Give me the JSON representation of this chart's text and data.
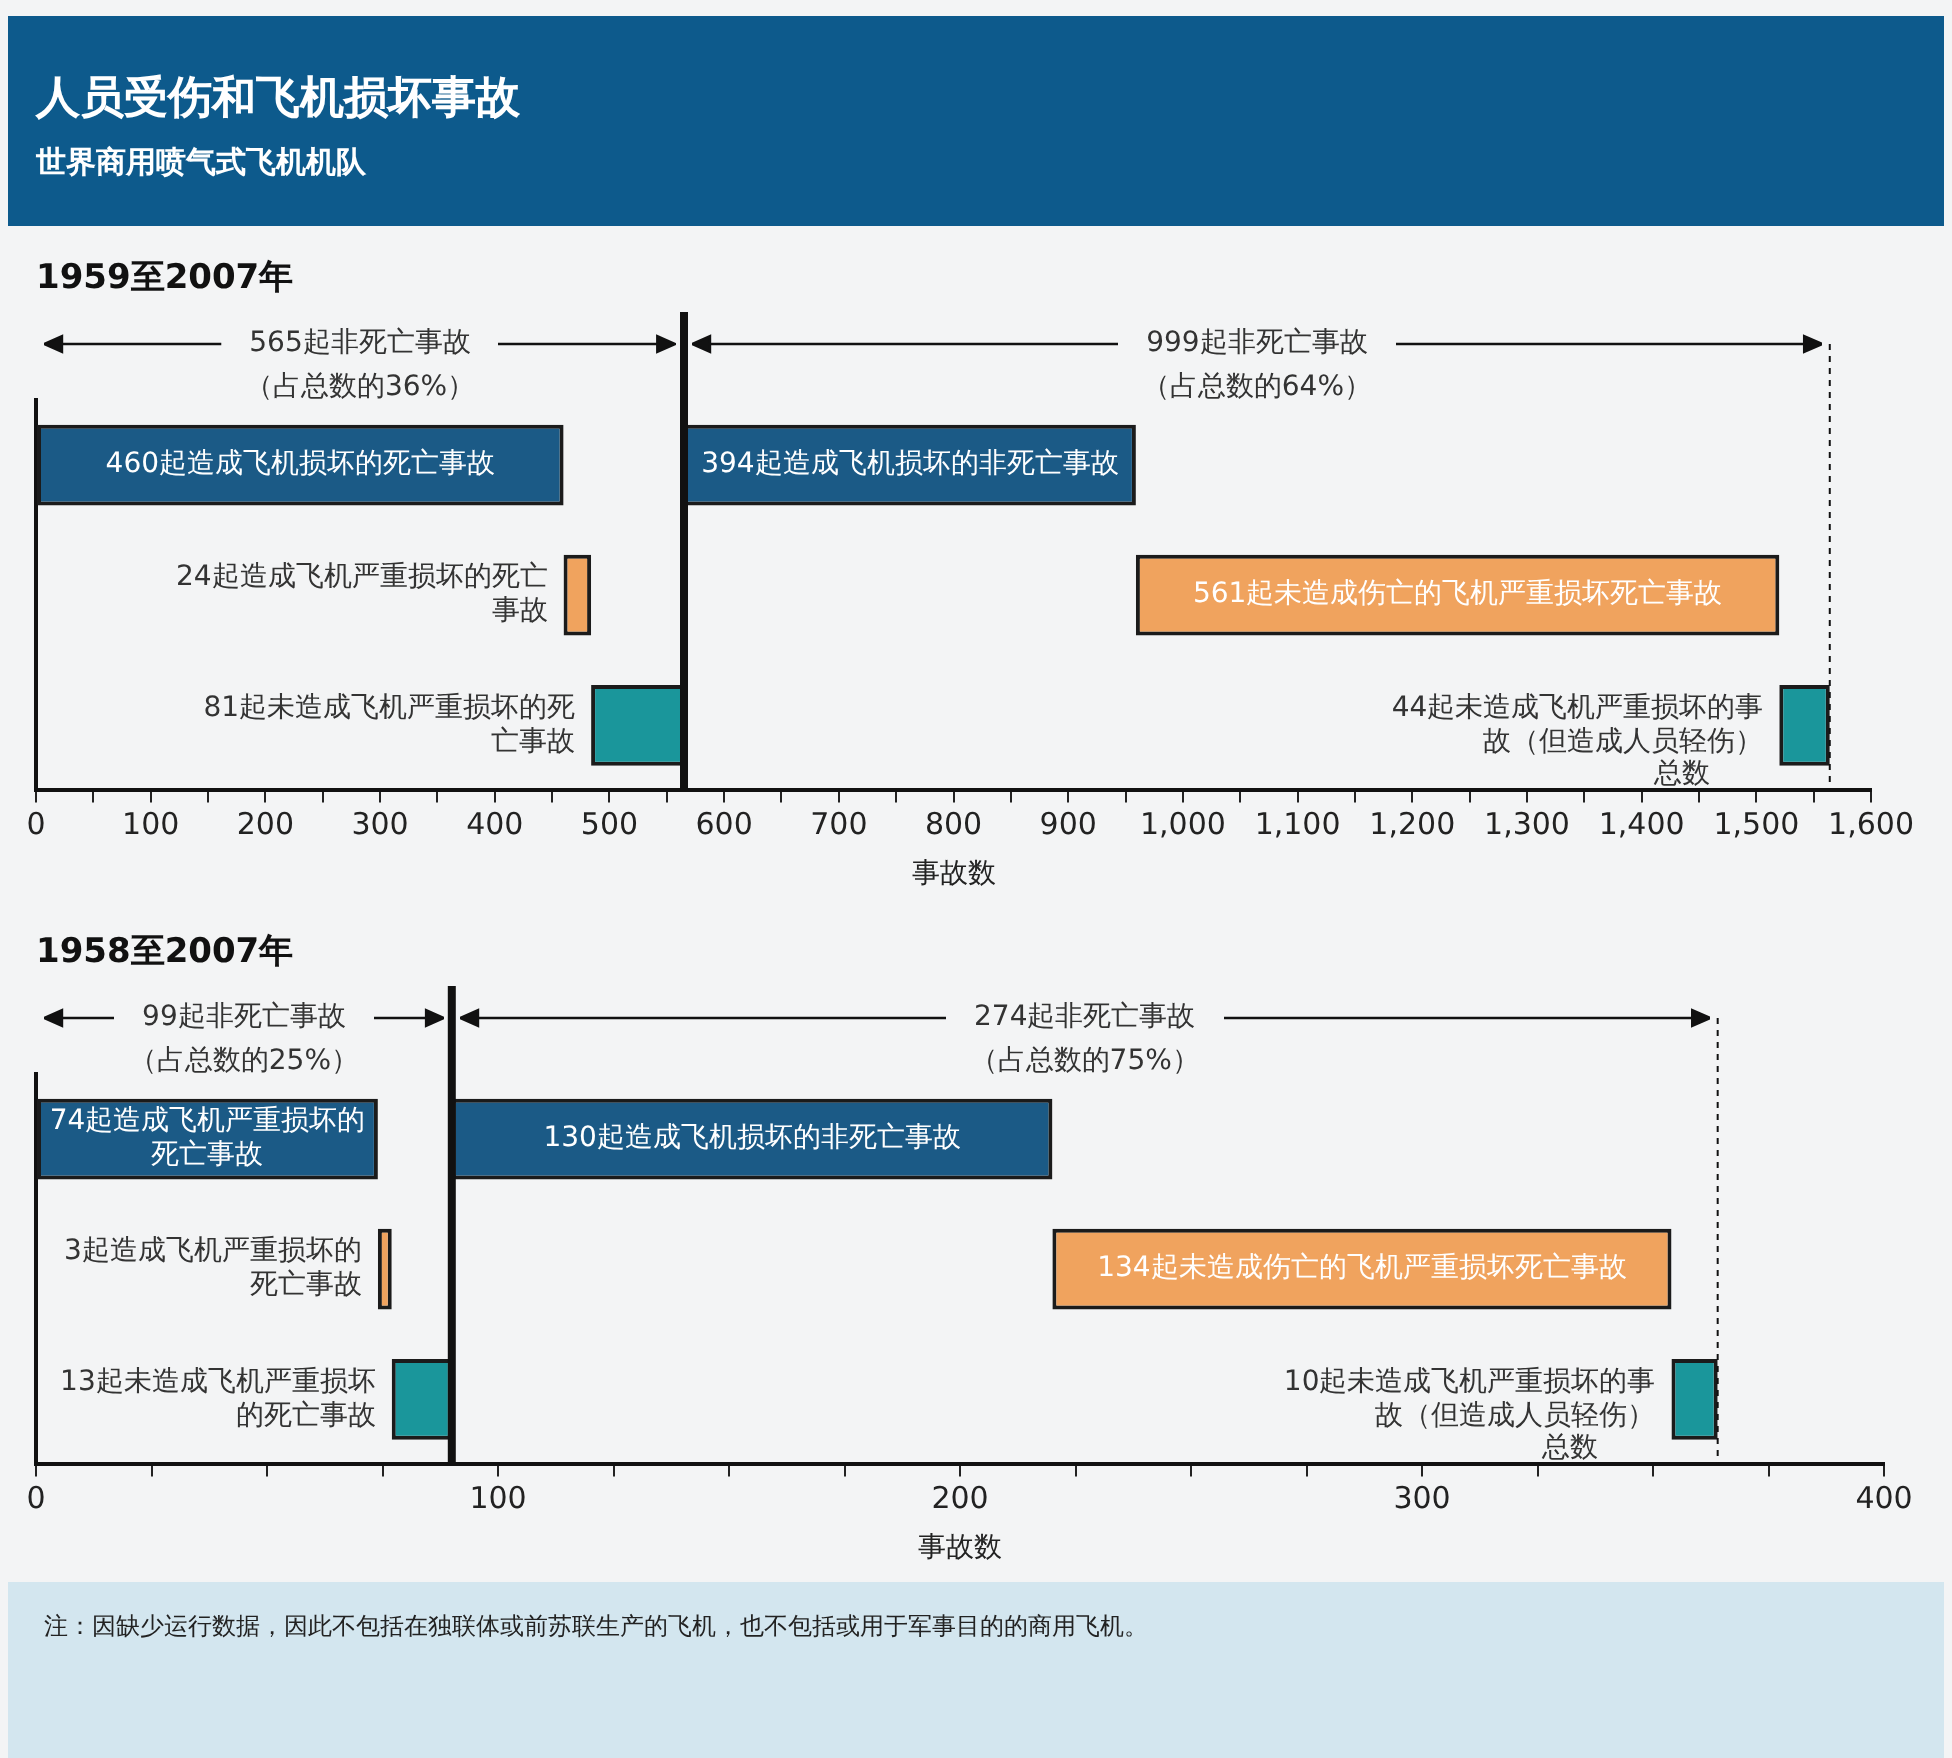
{
  "chart_data": [
    {
      "type": "other",
      "title": "人员受伤和飞机损坏事故",
      "subtitle": "世界商用喷气式飞机机队"
    },
    {
      "type": "bar",
      "orientation": "horizontal",
      "title": "1959至2007年",
      "xlabel": "事故数",
      "categories": [
        null,
        null,
        null
      ],
      "tick_labels": "x",
      "series": [
        {
          "values": [
            460,
            24,
            81
          ],
          "base": [
            0,
            460,
            484
          ],
          "colors": [
            "#1b5a86",
            "#f0a35e",
            "#1a969b"
          ],
          "value_labels": [
            "460起造成飞机损坏的死亡事故",
            "24起造成飞机严重损坏的死亡事故",
            "81起未造成飞机严重损坏的死亡事故"
          ]
        },
        {
          "values": [
            394,
            561,
            44
          ],
          "base": [
            565,
            959,
            1520
          ],
          "colors": [
            "#1b5a86",
            "#f0a35e",
            "#1a969b"
          ],
          "value_labels": [
            "394起造成飞机损坏的非死亡事故",
            "561起未造成伤亡的飞机严重损坏死亡事故",
            "44起未造成飞机严重损坏的事故（但造成人员轻伤）"
          ]
        }
      ],
      "xlim": [
        0,
        1600
      ],
      "xticks": [
        0,
        {
          "value": 50,
          "label": null
        },
        100,
        {
          "value": 150,
          "label": null
        },
        200,
        {
          "value": 250,
          "label": null
        },
        300,
        {
          "value": 350,
          "label": null
        },
        400,
        {
          "value": 450,
          "label": null
        },
        500,
        {
          "value": 550,
          "label": null
        },
        600,
        {
          "value": 650,
          "label": null
        },
        700,
        {
          "value": 750,
          "label": null
        },
        800,
        {
          "value": 850,
          "label": null
        },
        900,
        {
          "value": 950,
          "label": null
        },
        {
          "value": 1000,
          "label": "1,000"
        },
        {
          "value": 1050,
          "label": null
        },
        {
          "value": 1100,
          "label": "1,100"
        },
        {
          "value": 1150,
          "label": null
        },
        {
          "value": 1200,
          "label": "1,200"
        },
        {
          "value": 1250,
          "label": null
        },
        {
          "value": 1300,
          "label": "1,300"
        },
        {
          "value": 1350,
          "label": null
        },
        {
          "value": 1400,
          "label": "1,400"
        },
        {
          "value": 1450,
          "label": null
        },
        {
          "value": 1500,
          "label": "1,500"
        },
        {
          "value": 1550,
          "label": null
        },
        {
          "value": 1600,
          "label": "1,600"
        }
      ],
      "ref_lines": [
        {
          "axis": "x",
          "value": 565,
          "label": null,
          "line_style": "solid"
        },
        {
          "axis": "x",
          "value": 1564,
          "label": "总数",
          "line_style": "dashed"
        }
      ],
      "annotations": [
        "565起非死亡事故（占总数的36%）",
        "999起非死亡事故（占总数的64%）"
      ]
    },
    {
      "type": "bar",
      "orientation": "horizontal",
      "title": "1958至2007年",
      "xlabel": "事故数",
      "categories": [
        null,
        null,
        null
      ],
      "tick_labels": "x",
      "series": [
        {
          "values": [
            74,
            3,
            13
          ],
          "base": [
            0,
            74,
            77
          ],
          "colors": [
            "#1b5a86",
            "#f0a35e",
            "#1a969b"
          ],
          "value_labels": [
            "74起造成飞机严重损坏的死亡事故",
            "3起造成飞机严重损坏的死亡事故",
            "13起未造成飞机严重损坏的死亡事故"
          ]
        },
        {
          "values": [
            130,
            134,
            10
          ],
          "base": [
            90,
            220,
            354
          ],
          "colors": [
            "#1b5a86",
            "#f0a35e",
            "#1a969b"
          ],
          "value_labels": [
            "130起造成飞机损坏的非死亡事故",
            "134起未造成伤亡的飞机严重损坏死亡事故",
            "10起未造成飞机严重损坏的事故（但造成人员轻伤）"
          ]
        }
      ],
      "xlim": [
        0,
        400
      ],
      "xticks": [
        0,
        {
          "value": 25,
          "label": null
        },
        {
          "value": 50,
          "label": null
        },
        {
          "value": 75,
          "label": null
        },
        100,
        {
          "value": 125,
          "label": null
        },
        {
          "value": 150,
          "label": null
        },
        {
          "value": 175,
          "label": null
        },
        200,
        {
          "value": 225,
          "label": null
        },
        {
          "value": 250,
          "label": null
        },
        {
          "value": 275,
          "label": null
        },
        300,
        {
          "value": 325,
          "label": null
        },
        {
          "value": 350,
          "label": null
        },
        {
          "value": 375,
          "label": null
        },
        400
      ],
      "ref_lines": [
        {
          "axis": "x",
          "value": 90,
          "label": null,
          "line_style": "solid"
        },
        {
          "axis": "x",
          "value": 364,
          "label": "总数",
          "line_style": "dashed"
        }
      ],
      "annotations": [
        "99起非死亡事故（占总数的25%）",
        "274起非死亡事故（占总数的75%）"
      ]
    },
    {
      "type": "other",
      "annotations": [
        "注：因缺少运行数据，因此不包括在独联体或前苏联生产的飞机，也不包括或用于军事目的的商用飞机。"
      ]
    }
  ]
}
